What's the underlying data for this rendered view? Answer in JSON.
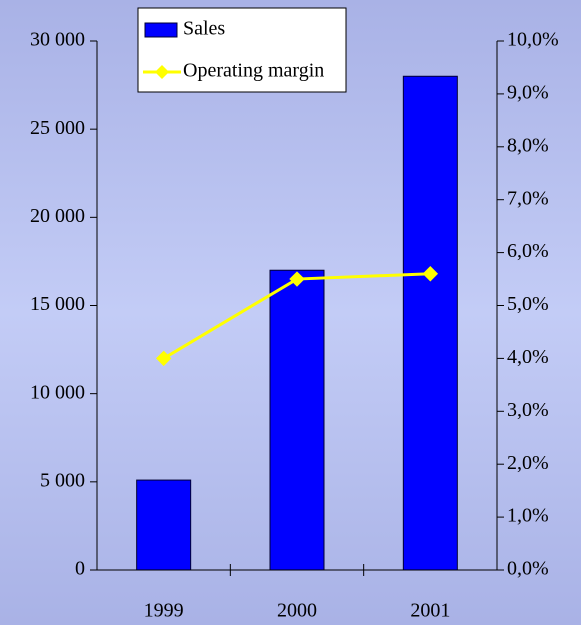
{
  "chart_data": {
    "type": "bar",
    "categories": [
      "1999",
      "2000",
      "2001"
    ],
    "series": [
      {
        "name": "Sales",
        "type": "bar",
        "color": "#0000ff",
        "axis": "y",
        "values": [
          5100,
          17000,
          28000
        ]
      },
      {
        "name": "Operating margin",
        "type": "line",
        "color": "#ffff00",
        "axis": "y2",
        "values": [
          4.0,
          5.5,
          5.6
        ]
      }
    ],
    "ylim": [
      0,
      30000
    ],
    "yticks": [
      0,
      {
        "value": 5000,
        "label": "5 000"
      },
      {
        "value": 10000,
        "label": "10 000"
      },
      {
        "value": 15000,
        "label": "15 000"
      },
      {
        "value": 20000,
        "label": "20 000"
      },
      {
        "value": 25000,
        "label": "25 000"
      },
      {
        "value": 30000,
        "label": "30 000"
      }
    ],
    "y2lim": [
      0,
      10
    ],
    "y2ticks": [
      {
        "value": 0,
        "label": "0,0%"
      },
      {
        "value": 1,
        "label": "1,0%"
      },
      {
        "value": 2,
        "label": "2,0%"
      },
      {
        "value": 3,
        "label": "3,0%"
      },
      {
        "value": 4,
        "label": "4,0%"
      },
      {
        "value": 5,
        "label": "5,0%"
      },
      {
        "value": 6,
        "label": "6,0%"
      },
      {
        "value": 7,
        "label": "7,0%"
      },
      {
        "value": 8,
        "label": "8,0%"
      },
      {
        "value": 9,
        "label": "9,0%"
      },
      {
        "value": 10,
        "label": "10,0%"
      }
    ],
    "grid": false
  }
}
